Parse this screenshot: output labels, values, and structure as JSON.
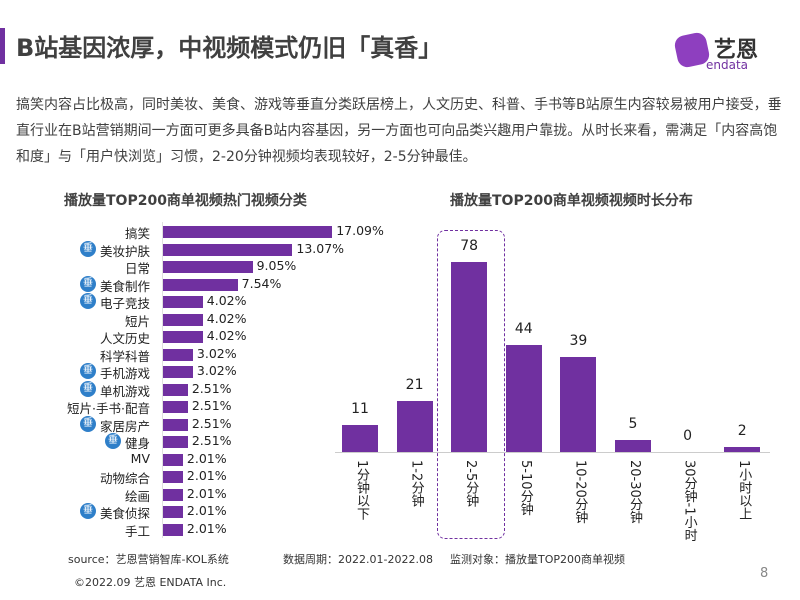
{
  "header": {
    "title": "B站基因浓厚，中视频模式仍旧「真香」",
    "logo_cn": "艺恩",
    "logo_en": "endata"
  },
  "paragraph": "搞笑内容占比极高，同时美妆、美食、游戏等垂直分类跃居榜上，人文历史、科普、手书等B站原生内容较易被用户接受，垂直行业在B站营销期间一方面可更多具备B站内容基因，另一方面也可向品类兴趣用户靠拢。从时长来看，需满足「内容高饱和度」与「用户快浏览」习惯，2-20分钟视频均表现较好，2-5分钟最佳。",
  "badge_text": "垂",
  "chart_data": [
    {
      "type": "bar",
      "orientation": "horizontal",
      "title": "播放量TOP200商单视频热门视频分类",
      "categories": [
        "搞笑",
        "美妆护肤",
        "日常",
        "美食制作",
        "电子竞技",
        "短片",
        "人文历史",
        "科学科普",
        "手机游戏",
        "单机游戏",
        "短片·手书·配音",
        "家居房产",
        "健身",
        "MV",
        "动物综合",
        "绘画",
        "美食侦探",
        "手工"
      ],
      "values": [
        17.09,
        13.07,
        9.05,
        7.54,
        4.02,
        4.02,
        4.02,
        3.02,
        3.02,
        2.51,
        2.51,
        2.51,
        2.51,
        2.01,
        2.01,
        2.01,
        2.01,
        2.01
      ],
      "labels": [
        "17.09%",
        "13.07%",
        "9.05%",
        "7.54%",
        "4.02%",
        "4.02%",
        "4.02%",
        "3.02%",
        "3.02%",
        "2.51%",
        "2.51%",
        "2.51%",
        "2.51%",
        "2.01%",
        "2.01%",
        "2.01%",
        "2.01%",
        "2.01%"
      ],
      "vertical_badge": [
        false,
        true,
        false,
        true,
        true,
        false,
        false,
        false,
        true,
        true,
        false,
        true,
        true,
        false,
        false,
        false,
        true,
        false
      ],
      "color": "#7030a0"
    },
    {
      "type": "bar",
      "orientation": "vertical",
      "title": "播放量TOP200商单视频视频时长分布",
      "categories": [
        "1分钟以下",
        "1-2分钟",
        "2-5分钟",
        "5-10分钟",
        "10-20分钟",
        "20-30分钟",
        "30分钟-1小时",
        "1小时以上"
      ],
      "values": [
        11,
        21,
        78,
        44,
        39,
        5,
        0,
        2
      ],
      "highlight": "2-5分钟",
      "ylim": [
        0,
        78
      ],
      "color": "#7030a0"
    }
  ],
  "footer": {
    "source": "source：艺恩营销智库-KOL系统",
    "period": "数据周期：2022.01-2022.08",
    "object": "监测对象：播放量TOP200商单视频",
    "copyright": "©2022.09 艺恩 ENDATA Inc.",
    "page": "8"
  }
}
